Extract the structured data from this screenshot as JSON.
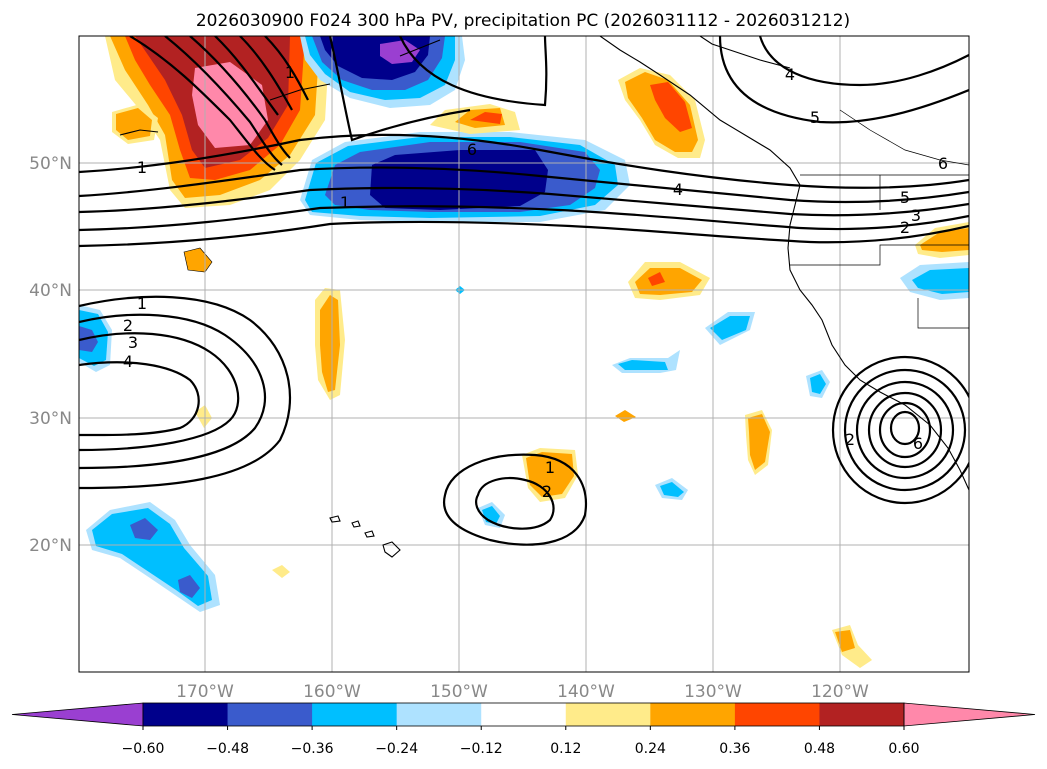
{
  "title": "2026030900 F024 300 hPa PV, precipitation PC (2026031112 - 2026031212)",
  "lat_labels": [
    "50°N",
    "40°N",
    "30°N",
    "20°N"
  ],
  "lon_labels": [
    "170°W",
    "160°W",
    "150°W",
    "140°W",
    "130°W",
    "120°W"
  ],
  "colorbar": {
    "ticks": [
      "−0.60",
      "−0.48",
      "−0.36",
      "−0.24",
      "−0.12",
      "0.12",
      "0.24",
      "0.36",
      "0.48",
      "0.60"
    ],
    "colors": [
      "#9a3fd1",
      "#00008b",
      "#3a5bcc",
      "#00bfff",
      "#aee2ff",
      "#ffffff",
      "#ffeb8a",
      "#ffa500",
      "#ff4500",
      "#b22222",
      "#ff88aa"
    ]
  },
  "contour_labels": {
    "upper_jet": [
      "1",
      "6",
      "1",
      "4",
      "5",
      "3",
      "2",
      "1"
    ],
    "left_high": [
      "1",
      "2",
      "3",
      "4"
    ],
    "mid_low": [
      "1",
      "2"
    ],
    "east_low": [
      "2",
      "6"
    ],
    "north_east": [
      "4",
      "5",
      "6"
    ]
  }
}
